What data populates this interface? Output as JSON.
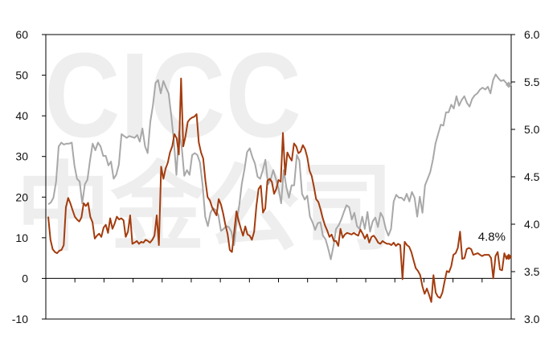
{
  "watermark": {
    "latin": "CICC",
    "cjk": "中金公司"
  },
  "colors": {
    "left_series": "#a33c0e",
    "right_series": "#a8a8a8",
    "axis": "#000000",
    "watermark": "#eeeeee"
  },
  "chart_data": {
    "type": "line",
    "y_left": {
      "lim": [
        -10,
        60
      ],
      "ticks": [
        -10,
        0,
        10,
        20,
        30,
        40,
        50,
        60
      ],
      "tick_labels": [
        "-10",
        "0",
        "10",
        "20",
        "30",
        "40",
        "50",
        "60"
      ]
    },
    "y_right": {
      "lim": [
        3.0,
        6.0
      ],
      "ticks": [
        3.0,
        3.5,
        4.0,
        4.5,
        5.0,
        5.5,
        6.0
      ],
      "tick_labels": [
        "3.0",
        "3.5",
        "4.0",
        "4.5",
        "5.0",
        "5.5",
        "6.0"
      ]
    },
    "x_ticks": 16,
    "grid": false,
    "annotations": [
      {
        "text": "4.8%",
        "series": 0
      }
    ],
    "series": [
      {
        "axis": "left",
        "color": "#a33c0e",
        "values": [
          15.2,
          9.5,
          7.2,
          6.5,
          6.2,
          6.8,
          7.0,
          8.2,
          17.5,
          19.8,
          18.5,
          16.8,
          15.2,
          14.5,
          14.0,
          15.0,
          18.5,
          17.8,
          18.6,
          15.2,
          13.8,
          9.8,
          10.5,
          11.0,
          10.2,
          12.5,
          13.2,
          11.2,
          14.8,
          12.2,
          13.5,
          15.2,
          14.5,
          14.8,
          14.3,
          10.2,
          11.5,
          15.5,
          8.5,
          8.8,
          9.2,
          8.5,
          9.0,
          8.8,
          9.5,
          9.2,
          8.8,
          9.5,
          10.5,
          15.5,
          8.2,
          27.5,
          24.5,
          27.0,
          28.5,
          31.0,
          32.5,
          35.5,
          34.5,
          30.5,
          49.2,
          32.5,
          35.0,
          38.5,
          39.2,
          39.6,
          39.8,
          40.4,
          33.5,
          31.0,
          29.5,
          24.0,
          20.0,
          19.2,
          17.5,
          16.5,
          15.5,
          19.5,
          18.2,
          16.0,
          13.2,
          11.0,
          7.0,
          6.5,
          11.5,
          16.5,
          14.2,
          12.2,
          10.5,
          12.8,
          10.8,
          10.5,
          9.5,
          11.5,
          17.8,
          22.0,
          22.8,
          16.2,
          17.2,
          24.0,
          24.5,
          23.8,
          20.8,
          22.0,
          24.2,
          23.8,
          35.8,
          25.5,
          31.0,
          29.8,
          29.0,
          33.2,
          32.5,
          30.8,
          31.2,
          32.8,
          31.8,
          29.8,
          26.5,
          25.2,
          22.5,
          19.5,
          18.8,
          17.0,
          14.8,
          13.0,
          11.8,
          10.2,
          10.8,
          9.2,
          9.2,
          8.0,
          12.2,
          10.0,
          10.8,
          11.2,
          11.0,
          10.8,
          11.2,
          10.8,
          10.5,
          12.0,
          11.0,
          9.8,
          10.8,
          8.8,
          10.2,
          10.5,
          9.8,
          8.8,
          8.5,
          9.2,
          8.8,
          8.5,
          8.5,
          8.2,
          8.8,
          8.0,
          8.5,
          8.2,
          -0.2,
          9.0,
          8.2,
          7.8,
          6.5,
          4.5,
          2.5,
          1.8,
          0.8,
          -2.0,
          -3.8,
          -2.5,
          -4.0,
          -5.8,
          0.8,
          -3.5,
          -4.5,
          -4.8,
          -3.5,
          -0.8,
          1.8,
          1.5,
          3.0,
          5.8,
          6.2,
          7.5,
          11.5,
          4.8,
          5.0,
          7.2,
          7.5,
          7.2,
          5.8,
          6.0,
          6.2,
          5.8,
          5.5,
          5.8,
          5.8,
          5.8,
          5.0,
          0.0,
          5.5,
          6.5,
          2.2,
          2.0,
          6.2,
          4.8,
          5.3
        ],
        "end_marker": true
      },
      {
        "axis": "right",
        "color": "#a8a8a8",
        "values": [
          4.21,
          4.23,
          4.28,
          4.45,
          4.82,
          4.86,
          4.84,
          4.85,
          4.85,
          4.86,
          4.62,
          4.48,
          4.45,
          4.22,
          4.42,
          4.47,
          4.68,
          4.85,
          4.78,
          4.86,
          4.82,
          4.72,
          4.72,
          4.62,
          4.66,
          4.48,
          4.52,
          4.63,
          4.95,
          4.93,
          4.91,
          4.93,
          4.92,
          4.91,
          4.94,
          4.87,
          5.01,
          4.82,
          4.75,
          5.08,
          5.25,
          5.49,
          5.52,
          5.38,
          5.51,
          5.44,
          5.38,
          5.15,
          4.88,
          4.52,
          4.98,
          4.82,
          4.51,
          4.57,
          4.52,
          4.73,
          4.75,
          4.73,
          4.65,
          4.41,
          4.08,
          3.98,
          4.12,
          4.17,
          4.15,
          4.1,
          3.93,
          3.95,
          3.98,
          3.97,
          3.92,
          3.78,
          4.03,
          4.2,
          4.43,
          4.58,
          4.76,
          4.8,
          4.71,
          4.64,
          4.5,
          4.48,
          4.57,
          4.68,
          4.42,
          4.47,
          4.57,
          4.48,
          4.38,
          4.22,
          4.57,
          4.39,
          4.28,
          4.41,
          4.41,
          4.73,
          4.67,
          4.32,
          4.26,
          4.3,
          4.08,
          4.02,
          3.94,
          4.01,
          4.02,
          3.88,
          3.84,
          3.74,
          3.63,
          3.77,
          3.95,
          3.99,
          4.05,
          4.13,
          4.2,
          4.18,
          4.05,
          4.12,
          3.98,
          3.95,
          4.08,
          3.95,
          4.13,
          3.92,
          4.03,
          4.07,
          3.97,
          4.12,
          4.07,
          3.95,
          3.88,
          3.95,
          4.24,
          4.31,
          4.28,
          4.28,
          4.25,
          4.32,
          4.24,
          4.34,
          4.28,
          4.08,
          4.29,
          4.12,
          4.41,
          4.48,
          4.55,
          4.68,
          4.85,
          4.95,
          5.05,
          5.04,
          5.18,
          5.18,
          5.26,
          5.22,
          5.35,
          5.25,
          5.31,
          5.35,
          5.28,
          5.24,
          5.32,
          5.36,
          5.38,
          5.42,
          5.44,
          5.42,
          5.45,
          5.38,
          5.52,
          5.58,
          5.54,
          5.51,
          5.52,
          5.49,
          5.47
        ]
      }
    ]
  }
}
